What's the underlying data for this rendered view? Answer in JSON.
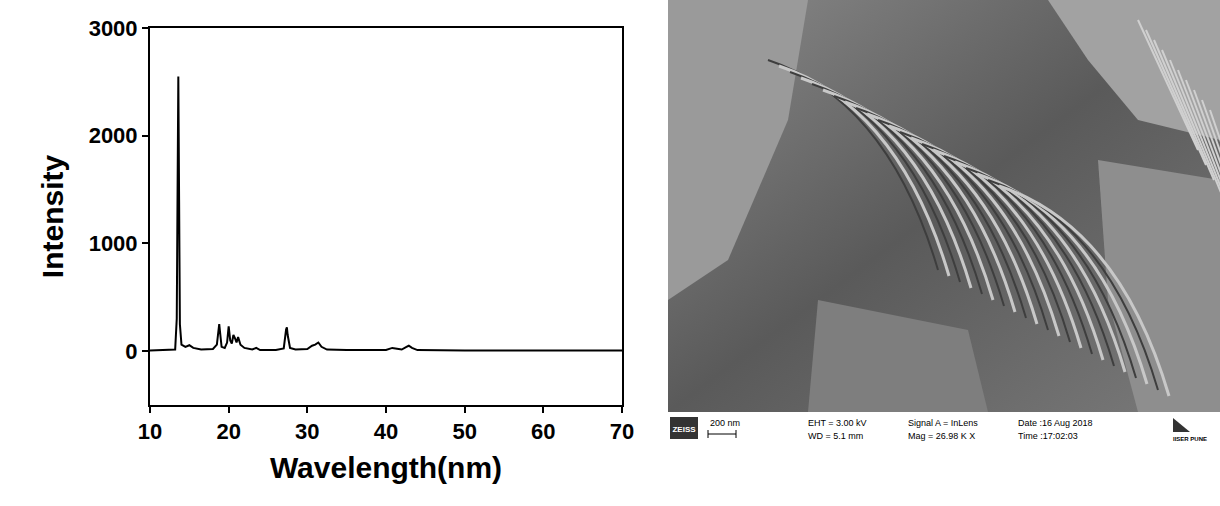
{
  "chart_data": {
    "type": "line",
    "x_label": "Wavelength(nm)",
    "y_label": "Intensity",
    "color": "#000000",
    "x": [
      10,
      13.2,
      13.4,
      13.5,
      13.6,
      13.7,
      13.8,
      14.0,
      14.5,
      15.0,
      15.5,
      16.5,
      18.0,
      18.5,
      18.7,
      18.8,
      18.9,
      19.1,
      19.5,
      19.8,
      20.0,
      20.2,
      20.4,
      20.6,
      20.8,
      21.0,
      21.2,
      21.5,
      22.0,
      23.0,
      23.5,
      24.0,
      26.0,
      27.0,
      27.3,
      27.4,
      27.5,
      27.8,
      28.5,
      30.0,
      30.6,
      31.0,
      31.4,
      31.8,
      32.5,
      35,
      40,
      40.8,
      41.2,
      42.0,
      42.6,
      42.9,
      43.3,
      44,
      50,
      60,
      70
    ],
    "values": [
      5,
      15,
      300,
      1500,
      2550,
      1400,
      250,
      60,
      40,
      55,
      30,
      15,
      20,
      60,
      230,
      250,
      180,
      40,
      30,
      80,
      230,
      100,
      70,
      150,
      120,
      80,
      130,
      60,
      30,
      15,
      30,
      10,
      10,
      25,
      200,
      220,
      150,
      30,
      15,
      20,
      50,
      60,
      80,
      40,
      15,
      10,
      10,
      30,
      25,
      15,
      40,
      50,
      30,
      10,
      5,
      5,
      5
    ],
    "xlim": [
      10,
      70
    ],
    "xticks": [
      10,
      20,
      30,
      40,
      50,
      60,
      70
    ],
    "ylim": [
      -500,
      3000
    ],
    "yticks": [
      0,
      1000,
      2000,
      3000
    ],
    "grid": false
  },
  "sem_image": {
    "logo_left": "ZEISS",
    "scale_bar": "200 nm",
    "info": [
      [
        "EHT = 3.00 kV",
        "WD = 5.1 mm"
      ],
      [
        "Signal A = InLens",
        "Mag = 26.98 K X"
      ],
      [
        "Date :16 Aug 2018",
        "Time :17:02:03"
      ]
    ],
    "logo_right": "IISER PUNE"
  }
}
